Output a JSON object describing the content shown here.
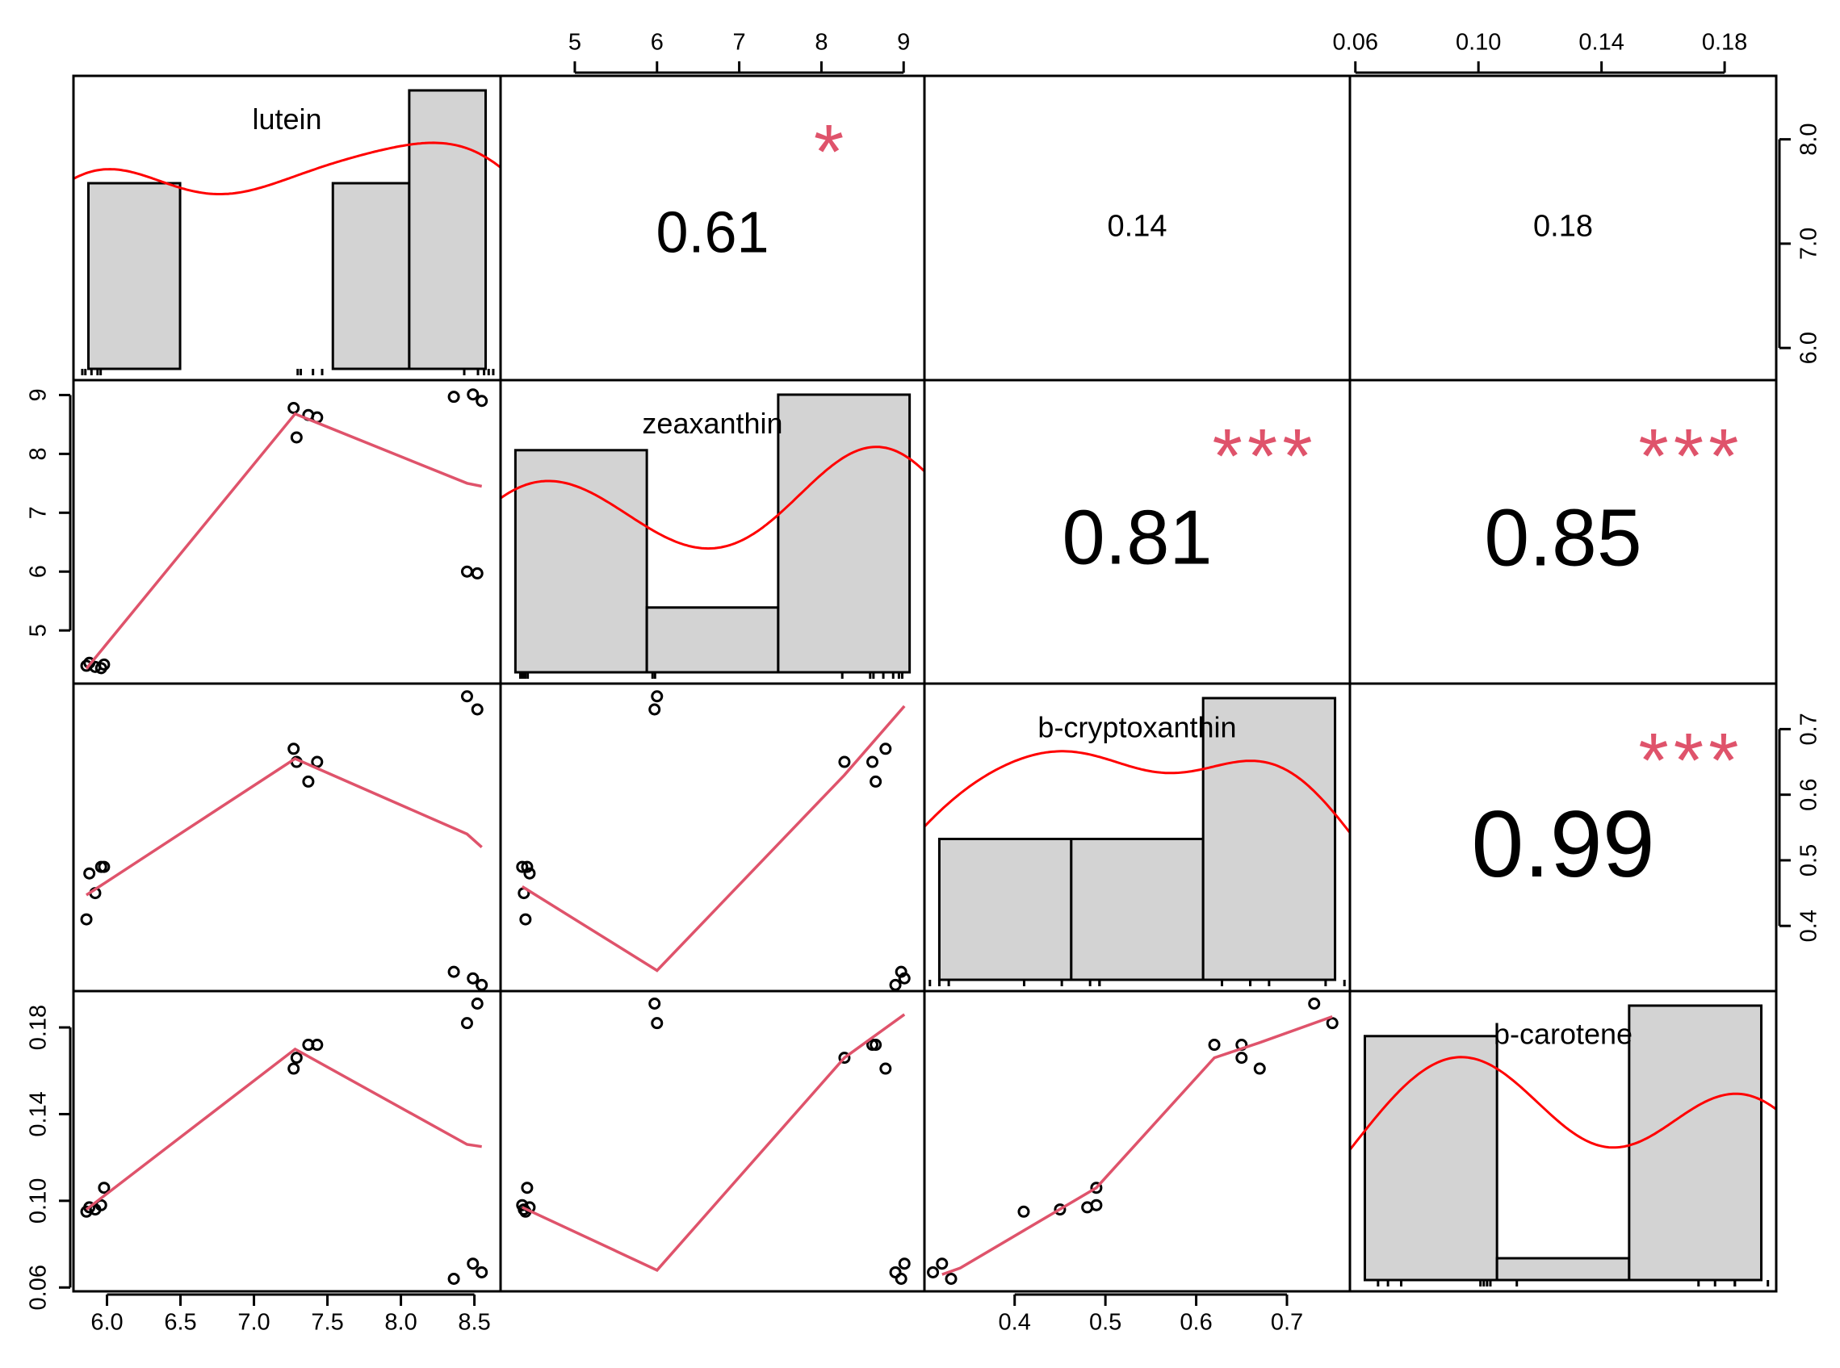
{
  "chart_data": {
    "type": "scatter-matrix",
    "variables": [
      "lutein",
      "zeaxanthin",
      "b-cryptoxanthin",
      "b-carotene"
    ],
    "colors": {
      "density": "#ff0000",
      "smooth": "#df536b",
      "significance": "#df536b",
      "bar_fill": "#d3d3d3",
      "frame": "#000000"
    },
    "observations": {
      "lutein": [
        5.86,
        5.88,
        5.92,
        5.96,
        5.98,
        7.27,
        7.29,
        7.37,
        7.43,
        8.36,
        8.45,
        8.49,
        8.52,
        8.55
      ],
      "zeaxanthin": [
        4.4,
        4.45,
        4.38,
        4.36,
        4.42,
        8.78,
        8.28,
        8.66,
        8.62,
        8.97,
        6.0,
        9.01,
        5.97,
        8.9
      ],
      "b-cryptoxanthin": [
        0.41,
        0.48,
        0.45,
        0.49,
        0.49,
        0.67,
        0.65,
        0.62,
        0.65,
        0.33,
        0.75,
        0.32,
        0.73,
        0.31
      ],
      "b-carotene": [
        0.095,
        0.097,
        0.096,
        0.098,
        0.106,
        0.161,
        0.166,
        0.172,
        0.172,
        0.064,
        0.182,
        0.071,
        0.191,
        0.067
      ]
    },
    "axes": {
      "lutein": {
        "ticks": [
          6.0,
          6.5,
          7.0,
          7.5,
          8.0,
          8.5
        ],
        "tick_labels": [
          "6.0",
          "6.5",
          "7.0",
          "7.5",
          "8.0",
          "8.5"
        ],
        "scatter_range": [
          5.83,
          8.62
        ],
        "hist_ticks": [
          6.0,
          7.0,
          8.0
        ],
        "hist_tick_labels": [
          "6.0",
          "7.0",
          "8.0"
        ],
        "hist_range": [
          5.85,
          8.45
        ]
      },
      "zeaxanthin": {
        "ticks": [
          5,
          6,
          7,
          8,
          9
        ],
        "tick_labels": [
          "5",
          "6",
          "7",
          "8",
          "9"
        ],
        "range": [
          4.2,
          9.15
        ]
      },
      "b-cryptoxanthin": {
        "ticks": [
          0.4,
          0.5,
          0.6,
          0.7
        ],
        "tick_labels": [
          "0.4",
          "0.5",
          "0.6",
          "0.7"
        ],
        "range": [
          0.31,
          0.76
        ]
      },
      "b-carotene": {
        "ticks": [
          0.06,
          0.1,
          0.14,
          0.18
        ],
        "tick_labels": [
          "0.06",
          "0.10",
          "0.14",
          "0.18"
        ],
        "range": [
          0.061,
          0.194
        ]
      }
    },
    "histograms": {
      "lutein": {
        "breaks": [
          5.9,
          6.5,
          7.0,
          7.5,
          8.0,
          8.5
        ],
        "counts": [
          1,
          0,
          0,
          1,
          1.5
        ]
      },
      "zeaxanthin": {
        "breaks": [
          4.3,
          5.9,
          7.5,
          9.1
        ],
        "counts": [
          2.4,
          0.7,
          3.0
        ]
      },
      "b-cryptoxanthin": {
        "breaks": [
          0.32,
          0.46,
          0.6,
          0.74
        ],
        "counts": [
          0.45,
          0.45,
          0.9
        ]
      },
      "b-carotene": {
        "breaks": [
          0.06,
          0.1,
          0.14,
          0.18
        ],
        "counts": [
          0.56,
          0.05,
          0.63
        ]
      }
    },
    "correlations": [
      {
        "row": 0,
        "col": 1,
        "value": "0.61",
        "stars": "*"
      },
      {
        "row": 0,
        "col": 2,
        "value": "0.14",
        "stars": ""
      },
      {
        "row": 0,
        "col": 3,
        "value": "0.18",
        "stars": ""
      },
      {
        "row": 1,
        "col": 2,
        "value": "0.81",
        "stars": "***"
      },
      {
        "row": 1,
        "col": 3,
        "value": "0.85",
        "stars": "***"
      },
      {
        "row": 2,
        "col": 3,
        "value": "0.99",
        "stars": "***"
      }
    ],
    "smooth_lines": {
      "1-0": {
        "x": [
          5.86,
          7.28,
          8.45,
          8.55
        ],
        "y": [
          4.35,
          8.68,
          7.5,
          7.45
        ]
      },
      "2-0": {
        "x": [
          5.86,
          7.28,
          8.45,
          8.55
        ],
        "y": [
          0.447,
          0.655,
          0.54,
          0.52
        ]
      },
      "3-0": {
        "x": [
          5.86,
          7.28,
          8.45,
          8.55
        ],
        "y": [
          0.096,
          0.17,
          0.126,
          0.125
        ]
      },
      "2-1": {
        "x": [
          4.36,
          6.0,
          8.28,
          9.01
        ],
        "y": [
          0.46,
          0.332,
          0.63,
          0.735
        ]
      },
      "3-1": {
        "x": [
          4.36,
          6.0,
          8.28,
          9.01
        ],
        "y": [
          0.097,
          0.068,
          0.166,
          0.186
        ]
      },
      "3-2": {
        "x": [
          0.32,
          0.34,
          0.49,
          0.62,
          0.67,
          0.75
        ],
        "y": [
          0.066,
          0.069,
          0.106,
          0.166,
          0.173,
          0.185
        ]
      }
    }
  }
}
